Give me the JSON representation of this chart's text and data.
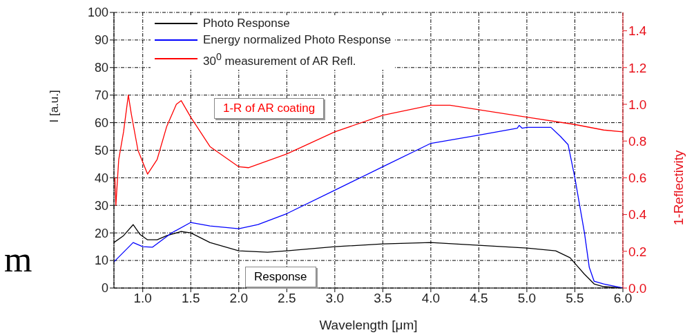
{
  "chart_data": {
    "type": "line",
    "xlabel": "Wavelength [μm]",
    "ylabel": "I [a.u.]",
    "y2label": "1-Reflectivity",
    "xlim": [
      0.7,
      6.0
    ],
    "xticks": [
      {
        "value": 1,
        "label": "1.0"
      },
      1.5,
      {
        "value": 2,
        "label": "2.0"
      },
      2.5,
      {
        "value": 3,
        "label": "3.0"
      },
      3.5,
      {
        "value": 4,
        "label": "4.0"
      },
      4.5,
      {
        "value": 5,
        "label": "5.0"
      },
      5.5,
      {
        "value": 6,
        "label": "6.0"
      }
    ],
    "ylim": [
      0,
      100
    ],
    "yticks": [
      0,
      10,
      20,
      30,
      40,
      50,
      60,
      70,
      80,
      90,
      100
    ],
    "y2lim": [
      0,
      1.5
    ],
    "y2ticks": [
      {
        "value": 0,
        "label": "0.0"
      },
      0.2,
      0.4,
      0.6,
      0.8,
      {
        "value": 1,
        "label": "1.0"
      },
      1.2,
      1.4
    ],
    "grid": true,
    "legend": "top left",
    "line_style": "solid",
    "marker": "none",
    "series": [
      {
        "name": "Photo Response",
        "color": "#000000",
        "x": [
          0.7,
          0.8,
          0.9,
          0.97,
          1.05,
          1.15,
          1.25,
          1.4,
          1.5,
          1.7,
          2.0,
          2.3,
          2.5,
          3.0,
          3.5,
          4.0,
          4.5,
          5.0,
          5.3,
          5.45,
          5.5,
          5.6,
          5.7,
          5.8,
          6.0
        ],
        "values": [
          16.5,
          19,
          23,
          19.5,
          17.5,
          17.5,
          19,
          20.5,
          20,
          16.5,
          13.5,
          13,
          13.5,
          15,
          16,
          16.5,
          15.5,
          14.5,
          13.5,
          11,
          9,
          5,
          1.5,
          0.5,
          0
        ]
      },
      {
        "name": "Energy normalized Photo Response",
        "color": "#0000ff",
        "x": [
          0.7,
          0.8,
          0.9,
          1.0,
          1.1,
          1.3,
          1.5,
          1.7,
          2.0,
          2.2,
          2.5,
          3.0,
          3.5,
          4.0,
          4.5,
          4.9,
          4.92,
          4.95,
          5.0,
          5.25,
          5.35,
          5.43,
          5.5,
          5.6,
          5.65,
          5.7,
          5.8,
          6.0
        ],
        "values": [
          9.5,
          13,
          16.5,
          15,
          14.8,
          20,
          23.8,
          22.5,
          21.5,
          23,
          27,
          35.5,
          44,
          52.5,
          55.5,
          58,
          59,
          58,
          58.3,
          58.3,
          55,
          52,
          40,
          20,
          7.5,
          2.5,
          1.5,
          0
        ]
      },
      {
        "name": "30$^{0}$ measurement of AR Refl.",
        "color": "#ff0000",
        "axis": "y2",
        "x": [
          0.71,
          0.72,
          0.75,
          0.8,
          0.85,
          0.88,
          0.95,
          1.05,
          1.15,
          1.25,
          1.35,
          1.4,
          1.5,
          1.7,
          2.0,
          2.1,
          2.5,
          3.0,
          3.5,
          4.0,
          4.2,
          4.5,
          5.0,
          5.5,
          5.8,
          6.0
        ],
        "values": [
          0.6,
          0.45,
          0.7,
          0.85,
          1.05,
          0.95,
          0.75,
          0.62,
          0.7,
          0.88,
          1.0,
          1.02,
          0.93,
          0.77,
          0.66,
          0.655,
          0.73,
          0.85,
          0.94,
          0.995,
          0.995,
          0.97,
          0.93,
          0.89,
          0.86,
          0.85
        ]
      }
    ],
    "annotations": [
      "1-R of AR coating",
      "Response",
      "m"
    ]
  }
}
